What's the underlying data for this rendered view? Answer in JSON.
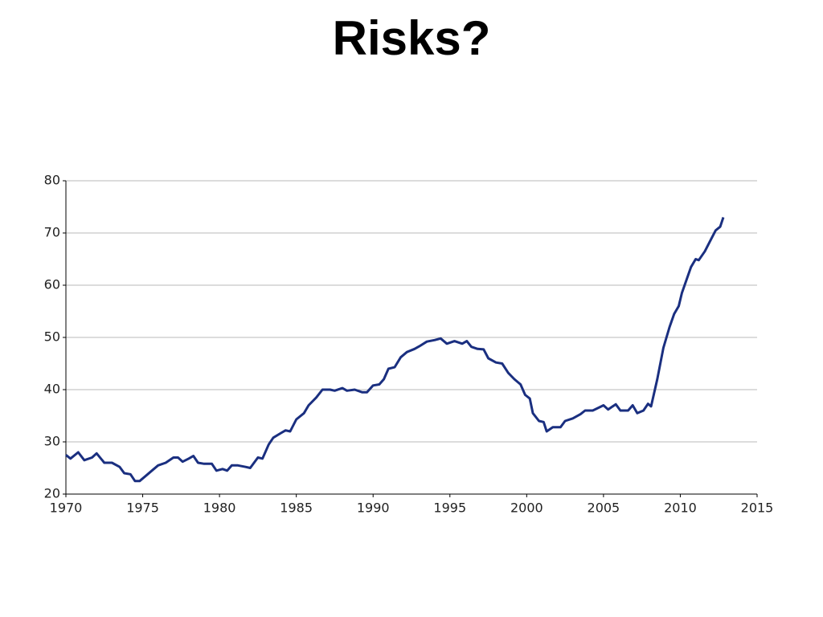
{
  "chart_data": {
    "type": "line",
    "title": "Risks?",
    "x": [
      1970,
      1970.3,
      1970.8,
      1971.2,
      1971.7,
      1972,
      1972.5,
      1973,
      1973.5,
      1973.8,
      1974.2,
      1974.5,
      1974.8,
      1975.2,
      1975.6,
      1976,
      1976.5,
      1977,
      1977.3,
      1977.6,
      1978,
      1978.3,
      1978.6,
      1979,
      1979.5,
      1979.8,
      1980.2,
      1980.5,
      1980.8,
      1981.2,
      1981.7,
      1982,
      1982.5,
      1982.8,
      1983.2,
      1983.5,
      1984,
      1984.3,
      1984.6,
      1985,
      1985.5,
      1985.8,
      1986.3,
      1986.7,
      1987.2,
      1987.5,
      1988,
      1988.3,
      1988.8,
      1989.3,
      1989.6,
      1990,
      1990.4,
      1990.7,
      1991,
      1991.4,
      1991.8,
      1992.2,
      1992.7,
      1993,
      1993.5,
      1994,
      1994.4,
      1994.8,
      1995.3,
      1995.8,
      1996.1,
      1996.4,
      1996.8,
      1997.2,
      1997.5,
      1998,
      1998.4,
      1998.8,
      1999.2,
      1999.6,
      1999.9,
      2000.2,
      2000.4,
      2000.8,
      2001.1,
      2001.3,
      2001.7,
      2002.2,
      2002.5,
      2003,
      2003.5,
      2003.8,
      2004.3,
      2004.8,
      2005,
      2005.3,
      2005.8,
      2006.1,
      2006.6,
      2006.9,
      2007.2,
      2007.6,
      2007.9,
      2008.1,
      2008.5,
      2008.9,
      2009.3,
      2009.6,
      2009.9,
      2010.1,
      2010.4,
      2010.7,
      2011,
      2011.2,
      2011.6,
      2012,
      2012.3,
      2012.6,
      2012.8
    ],
    "values": [
      27.5,
      26.8,
      28,
      26.5,
      27,
      27.8,
      26,
      26,
      25.2,
      24,
      23.8,
      22.5,
      22.5,
      23.5,
      24.5,
      25.5,
      26,
      27,
      27,
      26.2,
      26.8,
      27.3,
      26,
      25.8,
      25.8,
      24.5,
      24.8,
      24.5,
      25.5,
      25.5,
      25.2,
      25,
      27,
      26.8,
      29.5,
      30.8,
      31.7,
      32.2,
      32,
      34.3,
      35.5,
      37,
      38.5,
      40,
      40,
      39.8,
      40.3,
      39.8,
      40,
      39.5,
      39.5,
      40.8,
      41,
      42,
      44,
      44.3,
      46.2,
      47.2,
      47.8,
      48.3,
      49.2,
      49.5,
      49.8,
      48.8,
      49.3,
      48.8,
      49.3,
      48.2,
      47.8,
      47.7,
      46,
      45.2,
      45,
      43.2,
      42,
      41,
      39,
      38.3,
      35.5,
      34,
      33.8,
      32,
      32.8,
      32.8,
      34,
      34.5,
      35.3,
      36,
      36,
      36.7,
      37,
      36.2,
      37.2,
      36,
      36,
      37,
      35.5,
      36,
      37.3,
      36.8,
      42,
      48,
      52,
      54.5,
      56,
      58.5,
      61,
      63.5,
      65,
      64.8,
      66.5,
      68.8,
      70.5,
      71.2,
      73
    ],
    "color": "#1a2f80",
    "xlim": [
      1970,
      2015
    ],
    "xticks": [
      1970,
      1975,
      1980,
      1985,
      1990,
      1995,
      2000,
      2005,
      2010,
      2015
    ],
    "ylim": [
      20,
      80
    ],
    "yticks": [
      20,
      30,
      40,
      50,
      60,
      70,
      80
    ],
    "grid": true
  }
}
